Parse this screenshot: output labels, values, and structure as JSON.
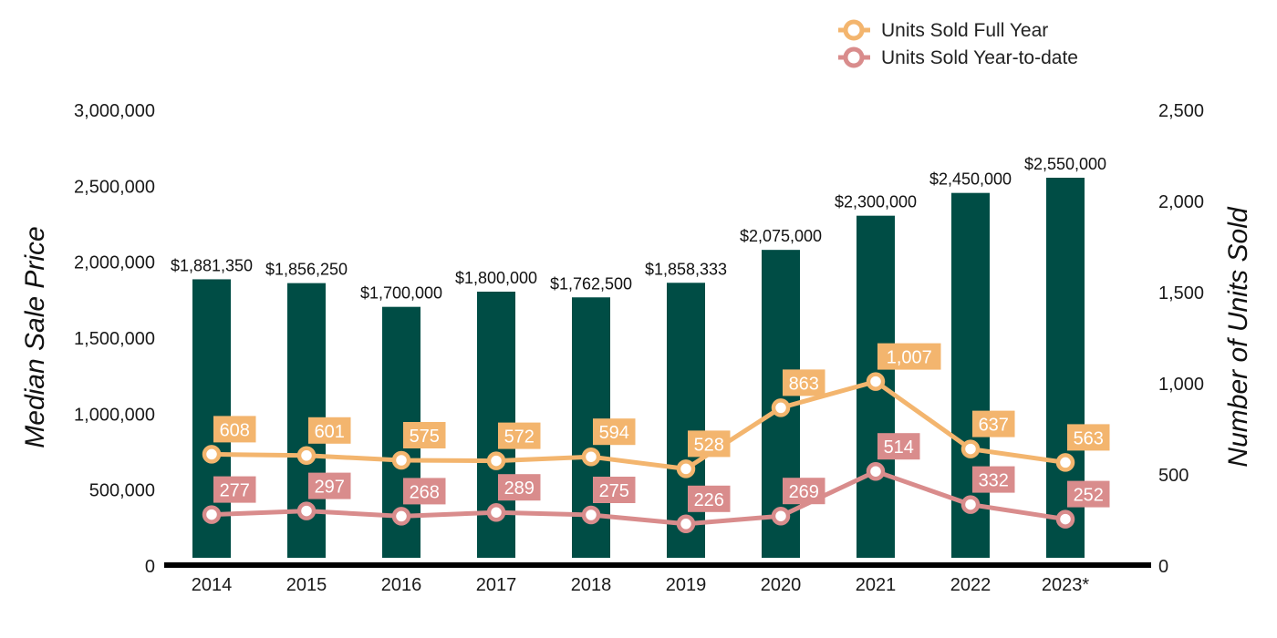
{
  "colors": {
    "bar": "#004d45",
    "full_year": "#f3b56e",
    "ytd": "#d98c8c",
    "axis": "#000000"
  },
  "chart_data": {
    "type": "bar",
    "categories": [
      "2014",
      "2015",
      "2016",
      "2017",
      "2018",
      "2019",
      "2020",
      "2021",
      "2022",
      "2023*"
    ],
    "series": [
      {
        "type": "bar",
        "axis": "left",
        "values": [
          1881350,
          1856250,
          1700000,
          1800000,
          1762500,
          1858333,
          2075000,
          2300000,
          2450000,
          2550000
        ],
        "labels": [
          "$1,881,350",
          "$1,856,250",
          "$1,700,000",
          "$1,800,000",
          "$1,762,500",
          "$1,858,333",
          "$2,075,000",
          "$2,300,000",
          "$2,450,000",
          "$2,550,000"
        ],
        "color": "#004d45"
      },
      {
        "type": "line",
        "axis": "right",
        "name": "Units Sold Full Year",
        "values": [
          608,
          601,
          575,
          572,
          594,
          528,
          863,
          1007,
          637,
          563
        ],
        "labels": [
          "608",
          "601",
          "575",
          "572",
          "594",
          "528",
          "863",
          "1,007",
          "637",
          "563"
        ],
        "color": "#f3b56e"
      },
      {
        "type": "line",
        "axis": "right",
        "name": "Units Sold Year-to-date",
        "values": [
          277,
          297,
          268,
          289,
          275,
          226,
          269,
          514,
          332,
          252
        ],
        "labels": [
          "277",
          "297",
          "268",
          "289",
          "275",
          "226",
          "269",
          "514",
          "332",
          "252"
        ],
        "color": "#d98c8c"
      }
    ],
    "ylabel": "Median Sale Price",
    "y2label": "Number of Units Sold",
    "ylim": [
      0,
      3000000
    ],
    "y2lim": [
      0,
      2500
    ],
    "yticks": [
      "0",
      "500,000",
      "1,000,000",
      "1,500,000",
      "2,000,000",
      "2,500,000",
      "3,000,000"
    ],
    "y2ticks": [
      "0",
      "500",
      "1,000",
      "1,500",
      "2,000",
      "2,500"
    ],
    "grid": false,
    "legend": "top-right"
  }
}
